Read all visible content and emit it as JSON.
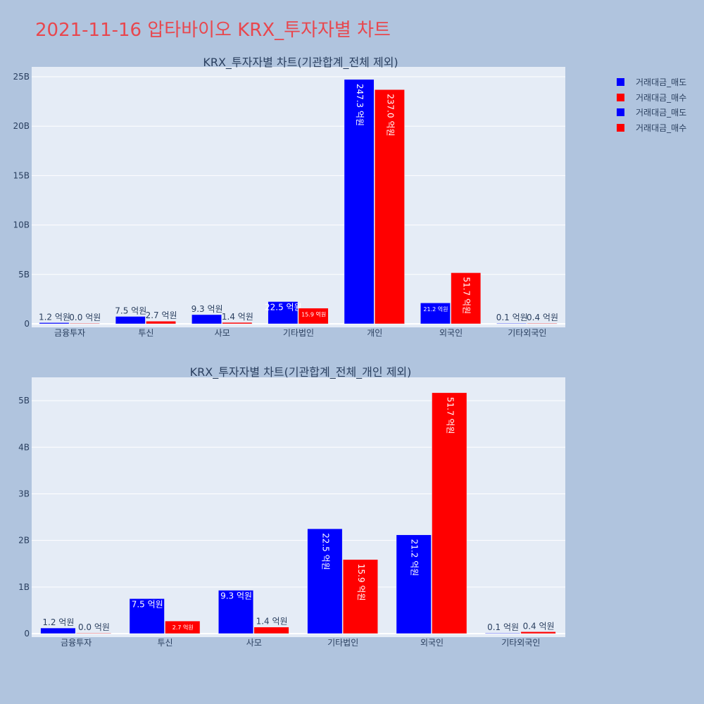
{
  "page": {
    "title": "2021-11-16 압타바이오 KRX_투자자별 차트"
  },
  "colors": {
    "sell": "#0000ff",
    "buy": "#ff0000"
  },
  "legend": [
    {
      "label": "거래대금_매도",
      "color": "#0000ff"
    },
    {
      "label": "거래대금_매수",
      "color": "#ff0000"
    },
    {
      "label": "거래대금_매도",
      "color": "#0000ff"
    },
    {
      "label": "거래대금_매수",
      "color": "#ff0000"
    }
  ],
  "chart_data": [
    {
      "type": "bar",
      "title": "KRX_투자자별 차트(기관합계_전체 제외)",
      "categories": [
        "금융투자",
        "투신",
        "사모",
        "기타법인",
        "개인",
        "외국인",
        "기타외국인"
      ],
      "ylim": [
        0,
        26
      ],
      "yticks": [
        0,
        5,
        10,
        15,
        20,
        25
      ],
      "ytick_labels": [
        "0",
        "5B",
        "10B",
        "15B",
        "20B",
        "25B"
      ],
      "series": [
        {
          "name": "거래대금_매도",
          "values": [
            0.12,
            0.75,
            0.93,
            2.25,
            24.73,
            2.12,
            0.01
          ],
          "labels": [
            "1.2 억원",
            "7.5 억원",
            "9.3 억원",
            "22.5 억원",
            "247.3 억원",
            "21.2 억원",
            "0.1 억원"
          ]
        },
        {
          "name": "거래대금_매수",
          "values": [
            0.0,
            0.27,
            0.14,
            1.59,
            23.7,
            5.17,
            0.04
          ],
          "labels": [
            "0.0 억원",
            "2.7 억원",
            "1.4 억원",
            "15.9 억원",
            "237.0 억원",
            "51.7 억원",
            "0.4 억원"
          ]
        }
      ]
    },
    {
      "type": "bar",
      "title": "KRX_투자자별 차트(기관합계_전체_개인 제외)",
      "categories": [
        "금융투자",
        "투신",
        "사모",
        "기타법인",
        "외국인",
        "기타외국인"
      ],
      "ylim": [
        0,
        5.5
      ],
      "yticks": [
        0,
        1,
        2,
        3,
        4,
        5
      ],
      "ytick_labels": [
        "0",
        "1B",
        "2B",
        "3B",
        "4B",
        "5B"
      ],
      "series": [
        {
          "name": "거래대금_매도",
          "values": [
            0.12,
            0.75,
            0.93,
            2.25,
            2.12,
            0.01
          ],
          "labels": [
            "1.2 억원",
            "7.5 억원",
            "9.3 억원",
            "22.5 억원",
            "21.2 억원",
            "0.1 억원"
          ]
        },
        {
          "name": "거래대금_매수",
          "values": [
            0.0,
            0.27,
            0.14,
            1.59,
            5.17,
            0.04
          ],
          "labels": [
            "0.0 억원",
            "2.7 억원",
            "1.4 억원",
            "15.9 억원",
            "51.7 억원",
            "0.4 억원"
          ]
        }
      ]
    }
  ]
}
